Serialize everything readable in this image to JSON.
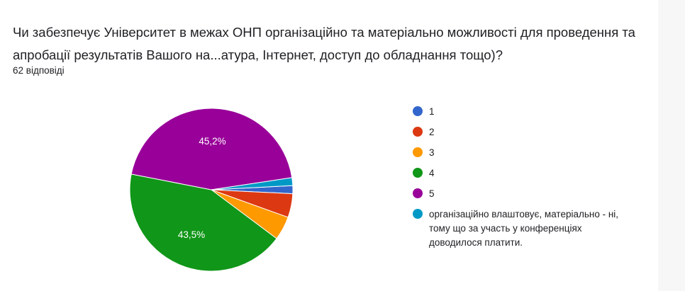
{
  "question": {
    "title": "Чи забезпечує Університет в межах ОНП організаційно та матеріально можливості для проведення та апробації результатів Вашого на...атура, Інтернет, доступ до обладнання тощо)?",
    "responses": "62 відповіді"
  },
  "chart_data": {
    "type": "pie",
    "categories": [
      "1",
      "2",
      "3",
      "4",
      "5",
      "організаційно влаштовує, матеріально - ні, тому що за участь у конференціях доводилося платити."
    ],
    "values": [
      1.6,
      4.8,
      4.8,
      43.5,
      45.2,
      1.6
    ],
    "slice_labels": [
      "",
      "",
      "",
      "43,5%",
      "45,2%",
      ""
    ],
    "colors": [
      "#3366cc",
      "#dc3912",
      "#ff9900",
      "#109618",
      "#990099",
      "#0099c6"
    ],
    "legend_position": "right"
  }
}
